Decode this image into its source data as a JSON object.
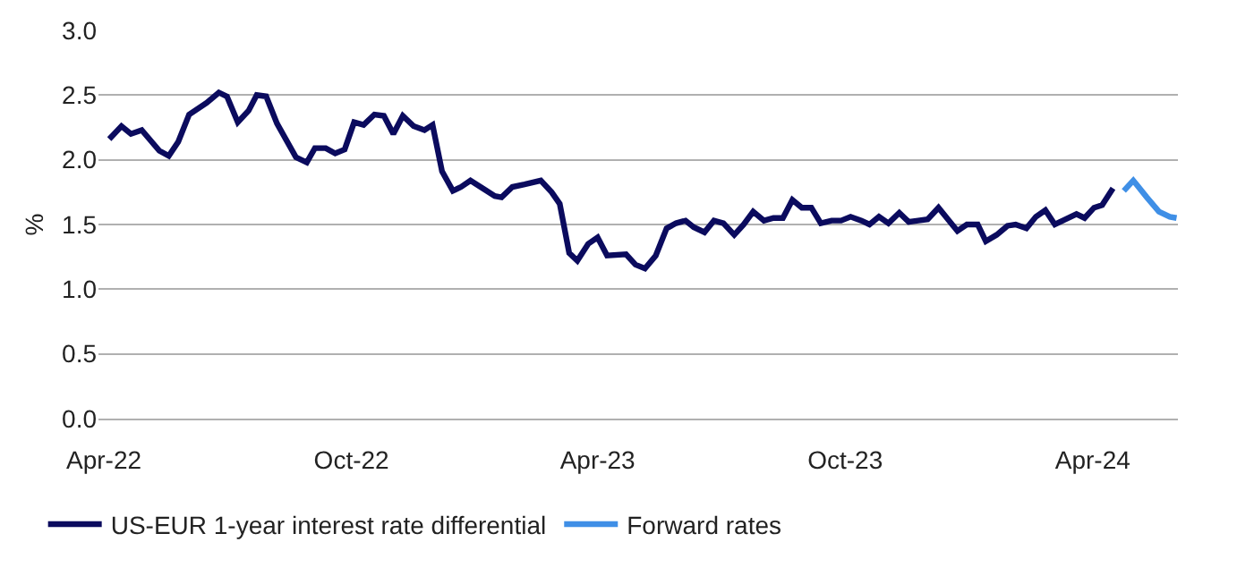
{
  "chart_data": {
    "type": "line",
    "ylabel": "%",
    "xlim": [
      "2022-03-28",
      "2024-06-03"
    ],
    "xticks": [
      {
        "value": "2022-04-01",
        "label": "Apr-22"
      },
      {
        "value": "2022-10-01",
        "label": "Oct-22"
      },
      {
        "value": "2023-04-01",
        "label": "Apr-23"
      },
      {
        "value": "2023-10-01",
        "label": "Oct-23"
      },
      {
        "value": "2024-04-01",
        "label": "Apr-24"
      }
    ],
    "ylim": [
      0,
      3
    ],
    "yticks": [
      {
        "value": 0,
        "label": "0.0"
      },
      {
        "value": 0.5,
        "label": "0.5"
      },
      {
        "value": 1,
        "label": "1.0"
      },
      {
        "value": 1.5,
        "label": "1.5"
      },
      {
        "value": 2,
        "label": "2.0"
      },
      {
        "value": 2.5,
        "label": "2.5"
      },
      {
        "value": 3,
        "label": "3.0"
      }
    ],
    "grid": "y",
    "legend": "bottom left",
    "marker": "none",
    "line_style": "solid",
    "series": [
      {
        "name": "US-EUR 1-year interest rate differential",
        "color": "#0b0b5e",
        "x": [
          "2022-04-05",
          "2022-04-14",
          "2022-04-21",
          "2022-04-29",
          "2022-05-12",
          "2022-05-19",
          "2022-05-26",
          "2022-06-03",
          "2022-06-16",
          "2022-06-25",
          "2022-07-01",
          "2022-07-09",
          "2022-07-17",
          "2022-07-23",
          "2022-07-30",
          "2022-08-07",
          "2022-08-21",
          "2022-08-29",
          "2022-09-04",
          "2022-09-12",
          "2022-09-19",
          "2022-09-26",
          "2022-10-03",
          "2022-10-10",
          "2022-10-18",
          "2022-10-25",
          "2022-11-01",
          "2022-11-08",
          "2022-11-16",
          "2022-11-24",
          "2022-11-30",
          "2022-12-07",
          "2022-12-15",
          "2022-12-21",
          "2022-12-28",
          "2023-01-06",
          "2023-01-15",
          "2023-01-20",
          "2023-01-28",
          "2023-02-06",
          "2023-02-18",
          "2023-02-26",
          "2023-03-04",
          "2023-03-11",
          "2023-03-17",
          "2023-03-25",
          "2023-04-01",
          "2023-04-08",
          "2023-04-22",
          "2023-04-29",
          "2023-05-06",
          "2023-05-14",
          "2023-05-22",
          "2023-05-29",
          "2023-06-05",
          "2023-06-11",
          "2023-06-19",
          "2023-06-26",
          "2023-07-03",
          "2023-07-11",
          "2023-07-18",
          "2023-07-25",
          "2023-08-02",
          "2023-08-09",
          "2023-08-16",
          "2023-08-23",
          "2023-08-30",
          "2023-09-06",
          "2023-09-13",
          "2023-09-21",
          "2023-09-28",
          "2023-10-05",
          "2023-10-13",
          "2023-10-19",
          "2023-10-26",
          "2023-11-02",
          "2023-11-10",
          "2023-11-17",
          "2023-11-24",
          "2023-12-01",
          "2023-12-09",
          "2023-12-16",
          "2023-12-23",
          "2023-12-30",
          "2024-01-07",
          "2024-01-13",
          "2024-01-21",
          "2024-01-29",
          "2024-02-04",
          "2024-02-12",
          "2024-02-19",
          "2024-02-26",
          "2024-03-04",
          "2024-03-12",
          "2024-03-20",
          "2024-03-26",
          "2024-04-02",
          "2024-04-08",
          "2024-04-16"
        ],
        "values": [
          2.16,
          2.26,
          2.2,
          2.23,
          2.07,
          2.03,
          2.14,
          2.35,
          2.44,
          2.52,
          2.49,
          2.29,
          2.38,
          2.5,
          2.49,
          2.28,
          2.02,
          1.98,
          2.09,
          2.09,
          2.05,
          2.08,
          2.29,
          2.27,
          2.35,
          2.34,
          2.2,
          2.34,
          2.26,
          2.23,
          2.27,
          1.91,
          1.76,
          1.79,
          1.84,
          1.78,
          1.72,
          1.71,
          1.79,
          1.81,
          1.84,
          1.75,
          1.66,
          1.28,
          1.22,
          1.35,
          1.4,
          1.26,
          1.27,
          1.19,
          1.16,
          1.26,
          1.47,
          1.51,
          1.53,
          1.48,
          1.44,
          1.53,
          1.51,
          1.42,
          1.5,
          1.6,
          1.53,
          1.55,
          1.55,
          1.69,
          1.63,
          1.63,
          1.51,
          1.53,
          1.53,
          1.56,
          1.53,
          1.5,
          1.56,
          1.51,
          1.59,
          1.52,
          1.53,
          1.54,
          1.63,
          1.54,
          1.45,
          1.5,
          1.5,
          1.37,
          1.42,
          1.49,
          1.5,
          1.47,
          1.56,
          1.61,
          1.5,
          1.54,
          1.58,
          1.55,
          1.63,
          1.65,
          1.78
        ]
      },
      {
        "name": "Forward rates",
        "color": "#3f8fe6",
        "x": [
          "2024-04-24",
          "2024-05-01",
          "2024-05-11",
          "2024-05-20",
          "2024-05-28",
          "2024-06-02"
        ],
        "values": [
          1.76,
          1.84,
          1.71,
          1.6,
          1.56,
          1.55
        ]
      }
    ]
  }
}
